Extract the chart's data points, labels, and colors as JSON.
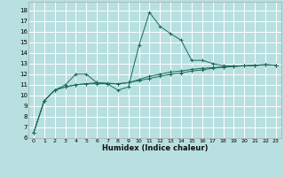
{
  "xlabel": "Humidex (Indice chaleur)",
  "bg_color": "#b8e0e0",
  "grid_color": "#ffffff",
  "line_color": "#1a6b5a",
  "xlim": [
    -0.5,
    23.5
  ],
  "ylim": [
    6,
    18.8
  ],
  "yticks": [
    6,
    7,
    8,
    9,
    10,
    11,
    12,
    13,
    14,
    15,
    16,
    17,
    18
  ],
  "xticks": [
    0,
    1,
    2,
    3,
    4,
    5,
    6,
    7,
    8,
    9,
    10,
    11,
    12,
    13,
    14,
    15,
    16,
    17,
    18,
    19,
    20,
    21,
    22,
    23
  ],
  "series1_x": [
    0,
    1,
    2,
    3,
    4,
    5,
    6,
    7,
    8,
    9,
    10,
    11,
    12,
    13,
    14,
    15,
    16,
    17,
    18,
    19,
    20,
    21,
    22,
    23
  ],
  "series1_y": [
    6.5,
    9.5,
    10.5,
    11.0,
    12.0,
    12.0,
    11.2,
    11.1,
    10.5,
    10.8,
    14.7,
    17.8,
    16.5,
    15.8,
    15.2,
    13.3,
    13.3,
    13.0,
    12.8,
    12.75,
    12.8,
    12.85,
    12.9,
    12.85
  ],
  "series2_x": [
    0,
    1,
    2,
    3,
    4,
    5,
    6,
    7,
    8,
    9,
    10,
    11,
    12,
    13,
    14,
    15,
    16,
    17,
    18,
    19,
    20,
    21,
    22,
    23
  ],
  "series2_y": [
    6.5,
    9.5,
    10.5,
    10.8,
    11.0,
    11.1,
    11.1,
    11.1,
    11.1,
    11.2,
    11.4,
    11.6,
    11.8,
    12.0,
    12.1,
    12.3,
    12.4,
    12.55,
    12.65,
    12.72,
    12.78,
    12.82,
    12.87,
    12.85
  ],
  "series3_x": [
    0,
    1,
    2,
    3,
    4,
    5,
    6,
    7,
    8,
    9,
    10,
    11,
    12,
    13,
    14,
    15,
    16,
    17,
    18,
    19,
    20,
    21,
    22,
    23
  ],
  "series3_y": [
    6.5,
    9.5,
    10.5,
    10.8,
    11.0,
    11.1,
    11.2,
    11.15,
    11.1,
    11.2,
    11.5,
    11.8,
    12.0,
    12.2,
    12.3,
    12.45,
    12.55,
    12.62,
    12.68,
    12.74,
    12.79,
    12.83,
    12.88,
    12.85
  ]
}
